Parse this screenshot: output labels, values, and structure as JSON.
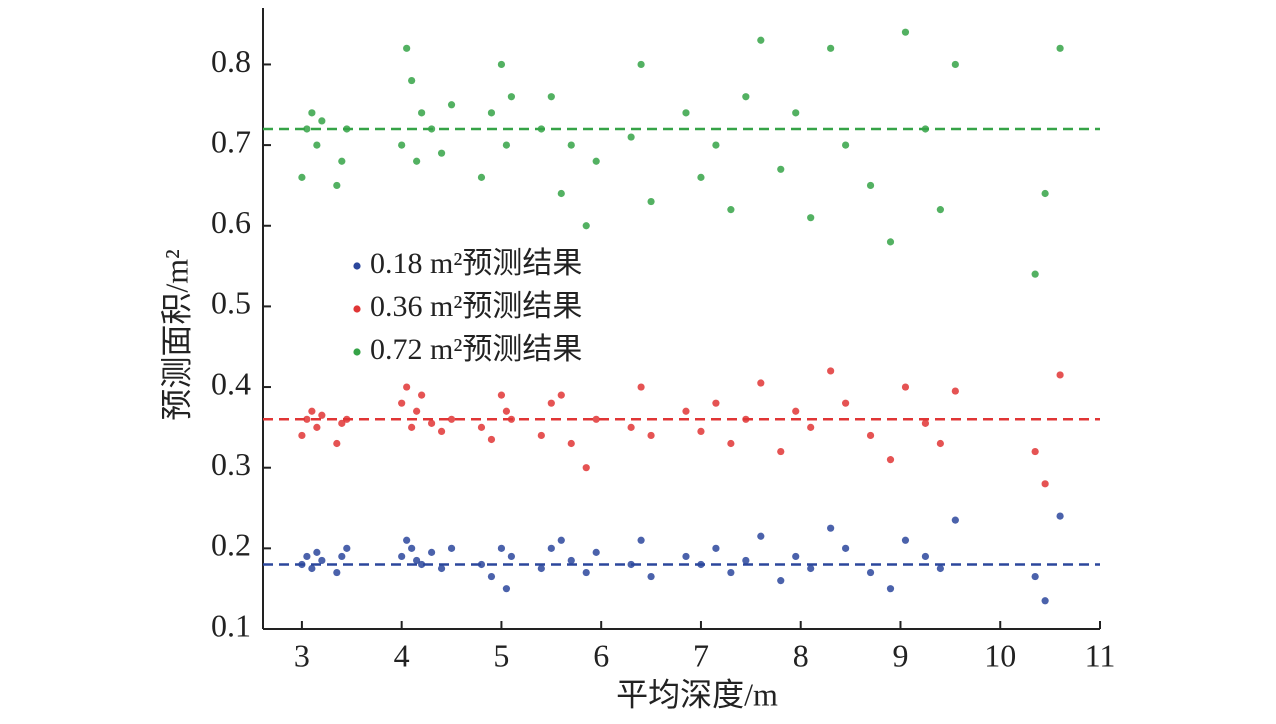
{
  "chart_data": {
    "type": "scatter",
    "xlabel": "平均深度/m",
    "ylabel": "预测面积/m²",
    "xlim": [
      2.61,
      11
    ],
    "xticks": [
      3,
      4,
      5,
      6,
      7,
      8,
      9,
      10,
      11
    ],
    "ylim": [
      0.1,
      0.87
    ],
    "yticks": [
      0.1,
      0.2,
      0.3,
      0.4,
      0.5,
      0.6,
      0.7,
      0.8
    ],
    "x": [
      3.0,
      3.05,
      3.1,
      3.15,
      3.2,
      3.35,
      3.4,
      3.45,
      4.0,
      4.05,
      4.1,
      4.15,
      4.2,
      4.3,
      4.4,
      4.5,
      4.8,
      4.9,
      5.0,
      5.05,
      5.1,
      5.4,
      5.5,
      5.6,
      5.7,
      5.85,
      5.95,
      6.3,
      6.4,
      6.5,
      6.85,
      7.0,
      7.15,
      7.3,
      7.45,
      7.6,
      7.8,
      7.95,
      8.1,
      8.3,
      8.45,
      8.7,
      8.9,
      9.05,
      9.25,
      9.4,
      9.55,
      10.35,
      10.45,
      10.6
    ],
    "series": [
      {
        "name": "0.18 m²预测结果",
        "color": "#2b479c",
        "reference": 0.18,
        "values": [
          0.18,
          0.19,
          0.175,
          0.195,
          0.185,
          0.17,
          0.19,
          0.2,
          0.19,
          0.21,
          0.2,
          0.185,
          0.18,
          0.195,
          0.175,
          0.2,
          0.18,
          0.165,
          0.2,
          0.15,
          0.19,
          0.175,
          0.2,
          0.21,
          0.185,
          0.17,
          0.195,
          0.18,
          0.21,
          0.165,
          0.19,
          0.18,
          0.2,
          0.17,
          0.185,
          0.215,
          0.16,
          0.19,
          0.175,
          0.225,
          0.2,
          0.17,
          0.15,
          0.21,
          0.19,
          0.175,
          0.235,
          0.165,
          0.135,
          0.24
        ]
      },
      {
        "name": "0.36 m²预测结果",
        "color": "#e03535",
        "reference": 0.36,
        "values": [
          0.34,
          0.36,
          0.37,
          0.35,
          0.365,
          0.33,
          0.355,
          0.36,
          0.38,
          0.4,
          0.35,
          0.37,
          0.39,
          0.355,
          0.345,
          0.36,
          0.35,
          0.335,
          0.39,
          0.37,
          0.36,
          0.34,
          0.38,
          0.39,
          0.33,
          0.3,
          0.36,
          0.35,
          0.4,
          0.34,
          0.37,
          0.345,
          0.38,
          0.33,
          0.36,
          0.405,
          0.32,
          0.37,
          0.35,
          0.42,
          0.38,
          0.34,
          0.31,
          0.4,
          0.355,
          0.33,
          0.395,
          0.32,
          0.28,
          0.415
        ]
      },
      {
        "name": "0.72 m²预测结果",
        "color": "#35a347",
        "reference": 0.72,
        "values": [
          0.66,
          0.72,
          0.74,
          0.7,
          0.73,
          0.65,
          0.68,
          0.72,
          0.7,
          0.82,
          0.78,
          0.68,
          0.74,
          0.72,
          0.69,
          0.75,
          0.66,
          0.74,
          0.8,
          0.7,
          0.76,
          0.72,
          0.76,
          0.64,
          0.7,
          0.6,
          0.68,
          0.71,
          0.8,
          0.63,
          0.74,
          0.66,
          0.7,
          0.62,
          0.76,
          0.83,
          0.67,
          0.74,
          0.61,
          0.82,
          0.7,
          0.65,
          0.58,
          0.84,
          0.72,
          0.62,
          0.8,
          0.54,
          0.64,
          0.82
        ]
      }
    ]
  }
}
